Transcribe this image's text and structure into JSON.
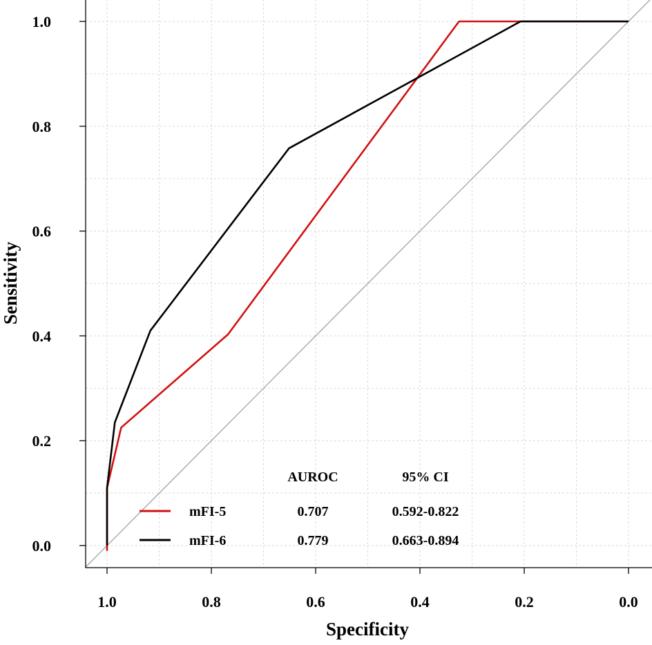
{
  "chart_data": {
    "type": "line",
    "title": "",
    "xlabel": "Specificity",
    "ylabel": "Sensitivity",
    "xlim": [
      1.0,
      0.0
    ],
    "ylim": [
      0.0,
      1.0
    ],
    "x_reversed": true,
    "grid": true,
    "xticks": [
      {
        "value": 1.0,
        "label": "1.0"
      },
      {
        "value": 0.8,
        "label": "0.8"
      },
      {
        "value": 0.6,
        "label": "0.6"
      },
      {
        "value": 0.4,
        "label": "0.4"
      },
      {
        "value": 0.2,
        "label": "0.2"
      },
      {
        "value": 0.0,
        "label": "0.0"
      }
    ],
    "yticks": [
      {
        "value": 0.0,
        "label": "0.0"
      },
      {
        "value": 0.2,
        "label": "0.2"
      },
      {
        "value": 0.4,
        "label": "0.4"
      },
      {
        "value": 0.6,
        "label": "0.6"
      },
      {
        "value": 0.8,
        "label": "0.8"
      },
      {
        "value": 1.0,
        "label": "1.0"
      }
    ],
    "reference_line": {
      "name": "chance",
      "from": [
        1.0,
        0.0
      ],
      "to": [
        0.0,
        1.0
      ],
      "color": "#9a9a9a"
    },
    "series": [
      {
        "name": "mFI-5",
        "color": "#d01010",
        "x": [
          1.0,
          1.0,
          0.973,
          0.768,
          0.325,
          0.0
        ],
        "y": [
          -0.01,
          0.11,
          0.225,
          0.403,
          1.0,
          1.0
        ]
      },
      {
        "name": "mFI-6",
        "color": "#000000",
        "x": [
          1.0,
          1.0,
          0.985,
          0.917,
          0.651,
          0.207,
          0.0
        ],
        "y": [
          0.0,
          0.11,
          0.235,
          0.41,
          0.758,
          1.0,
          1.0
        ]
      }
    ],
    "legend": {
      "placement": "bottom-right",
      "header": {
        "auroc": "AUROC",
        "ci": "95% CI"
      },
      "rows": [
        {
          "name": "mFI-5",
          "auroc": "0.707",
          "ci": "0.592-0.822",
          "color": "#d01010"
        },
        {
          "name": "mFI-6",
          "auroc": "0.779",
          "ci": "0.663-0.894",
          "color": "#000000"
        }
      ]
    }
  }
}
